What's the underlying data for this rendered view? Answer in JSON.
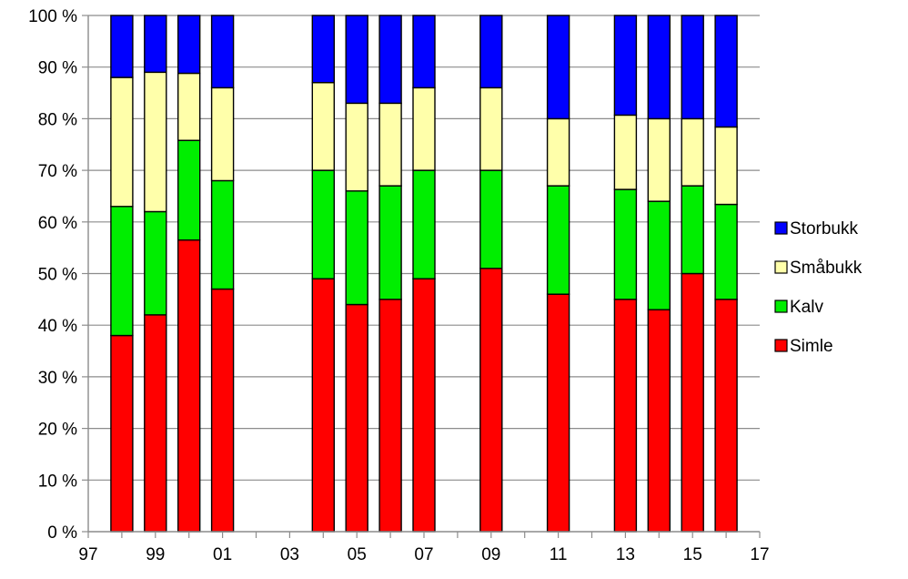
{
  "chart_data": {
    "type": "bar",
    "stacked": true,
    "title": "",
    "xlabel": "",
    "ylabel": "",
    "ylim": [
      0,
      100
    ],
    "xlim": [
      1997,
      2017
    ],
    "y_ticks": [
      "0 %",
      "10 %",
      "20 %",
      "30 %",
      "40 %",
      "50 %",
      "60 %",
      "70 %",
      "80 %",
      "90 %",
      "100 %"
    ],
    "x_ticks": [
      "97",
      "99",
      "01",
      "03",
      "05",
      "07",
      "09",
      "11",
      "13",
      "15",
      "17"
    ],
    "grid": "horizontal",
    "legend_position": "right",
    "years": [
      1998,
      1999,
      2000,
      2001,
      2004,
      2005,
      2006,
      2007,
      2009,
      2011,
      2013,
      2014,
      2015,
      2016
    ],
    "series": [
      {
        "name": "Simle",
        "color": "#ff0000",
        "values": [
          38,
          42,
          56.5,
          47,
          49,
          44,
          45,
          49,
          51,
          46,
          45,
          43,
          50,
          45
        ]
      },
      {
        "name": "Kalv",
        "color": "#00ee00",
        "values": [
          25,
          20,
          19.3,
          21,
          21,
          22,
          22,
          21,
          19,
          21,
          21.3,
          21,
          17,
          18.4
        ]
      },
      {
        "name": "Småbukk",
        "color": "#ffffaa",
        "values": [
          25,
          27,
          13,
          18,
          17,
          17,
          16,
          16,
          16,
          13,
          14.4,
          16,
          13,
          15
        ]
      },
      {
        "name": "Storbukk",
        "color": "#0000ff",
        "values": [
          12,
          11,
          11.2,
          14,
          13,
          17,
          17,
          14,
          14,
          20,
          19.3,
          20,
          20,
          21.6
        ]
      }
    ],
    "legend_order": [
      "Storbukk",
      "Småbukk",
      "Kalv",
      "Simle"
    ]
  }
}
